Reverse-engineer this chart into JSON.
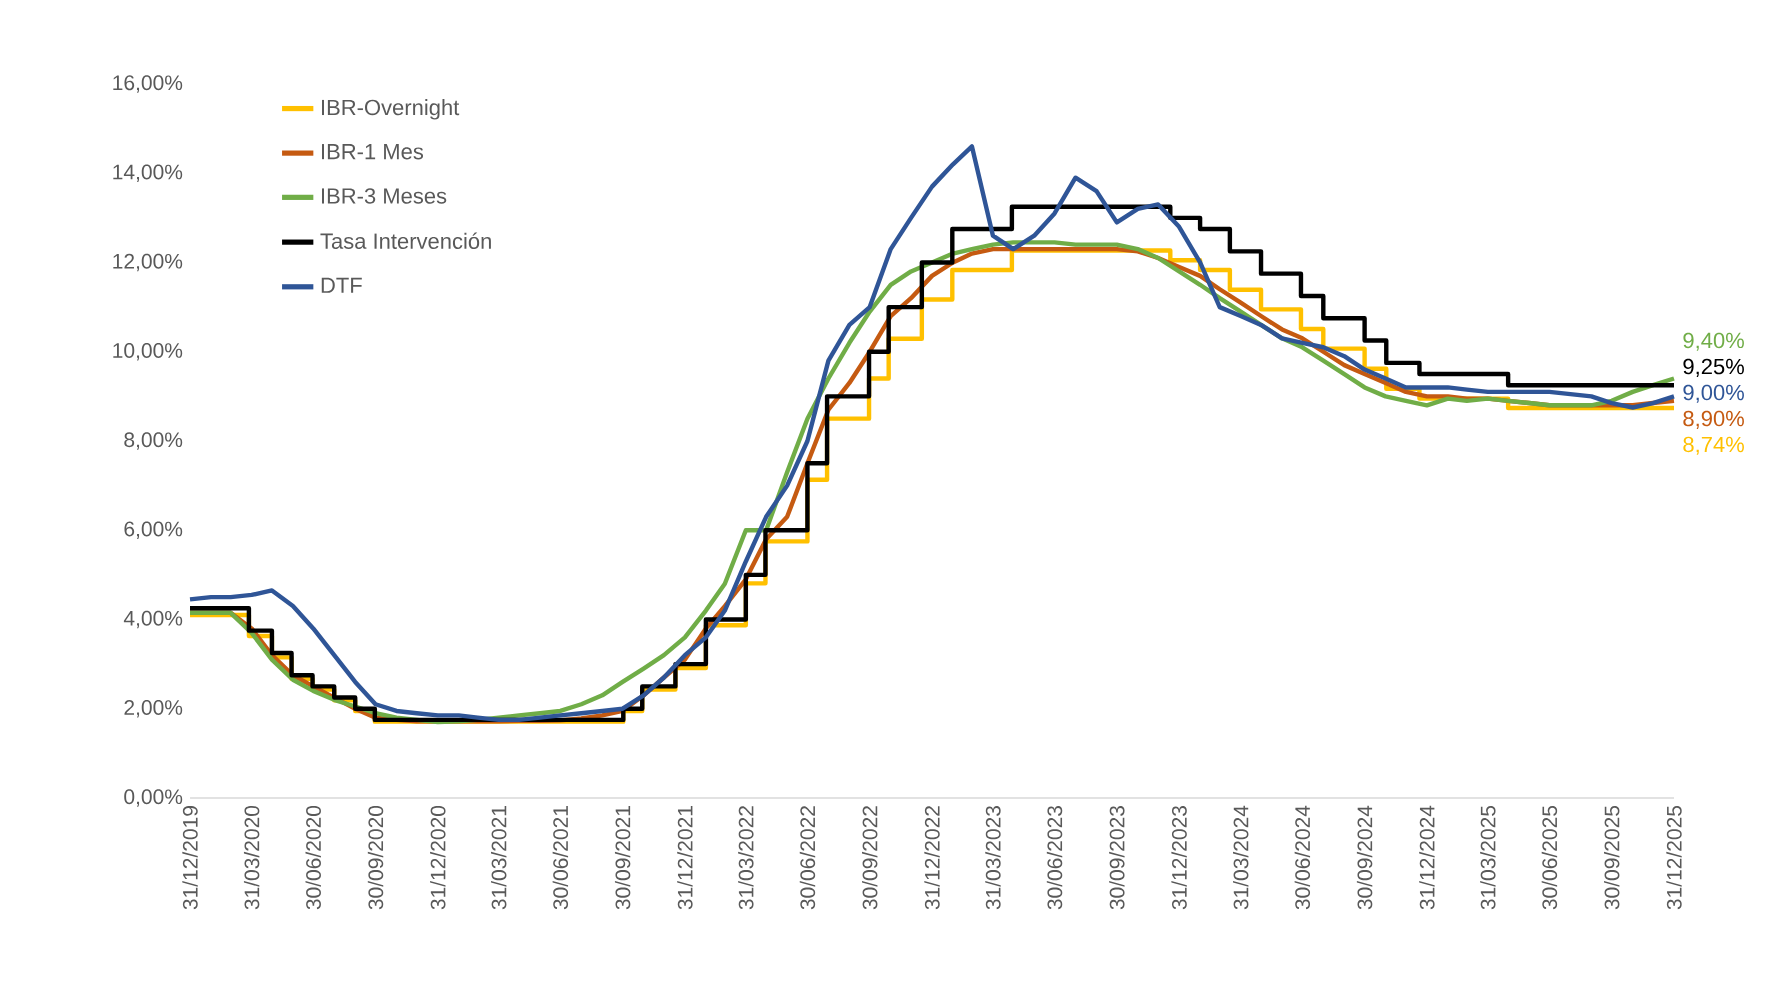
{
  "chart_data": {
    "type": "line",
    "x": [
      "2019-12-31",
      "2020-01-31",
      "2020-02-29",
      "2020-03-31",
      "2020-04-30",
      "2020-05-31",
      "2020-06-30",
      "2020-07-31",
      "2020-08-31",
      "2020-09-30",
      "2020-10-31",
      "2020-11-30",
      "2020-12-31",
      "2021-01-31",
      "2021-02-28",
      "2021-03-31",
      "2021-04-30",
      "2021-05-31",
      "2021-06-30",
      "2021-07-31",
      "2021-08-31",
      "2021-09-30",
      "2021-10-31",
      "2021-11-30",
      "2021-12-31",
      "2022-01-31",
      "2022-02-28",
      "2022-03-31",
      "2022-04-30",
      "2022-05-31",
      "2022-06-30",
      "2022-07-31",
      "2022-08-31",
      "2022-09-30",
      "2022-10-31",
      "2022-11-30",
      "2022-12-31",
      "2023-01-31",
      "2023-02-28",
      "2023-03-31",
      "2023-04-30",
      "2023-05-31",
      "2023-06-30",
      "2023-07-31",
      "2023-08-31",
      "2023-09-30",
      "2023-10-31",
      "2023-11-30",
      "2023-12-31",
      "2024-01-31",
      "2024-02-29",
      "2024-03-31",
      "2024-04-30",
      "2024-05-31",
      "2024-06-30",
      "2024-07-31",
      "2024-08-31",
      "2024-09-30",
      "2024-10-31",
      "2024-11-30",
      "2024-12-31",
      "2025-01-31",
      "2025-02-28",
      "2025-03-31",
      "2025-04-30",
      "2025-05-31",
      "2025-06-30",
      "2025-07-31",
      "2025-08-31",
      "2025-09-30",
      "2025-10-31",
      "2025-11-30",
      "2025-12-31"
    ],
    "series": [
      {
        "name": "IBR-Overnight",
        "type": "step",
        "color": "#ffc000",
        "x": [
          "2019-12-31",
          "2020-03-27",
          "2020-04-30",
          "2020-05-29",
          "2020-06-29",
          "2020-07-31",
          "2020-08-31",
          "2020-09-29",
          "2021-10-01",
          "2021-10-29",
          "2021-12-17",
          "2022-01-31",
          "2022-03-31",
          "2022-04-29",
          "2022-06-30",
          "2022-07-29",
          "2022-09-29",
          "2022-10-28",
          "2022-12-16",
          "2023-01-30",
          "2023-04-28",
          "2023-12-18",
          "2024-01-31",
          "2024-03-15",
          "2024-04-30",
          "2024-06-28",
          "2024-07-31",
          "2024-09-30",
          "2024-11-01",
          "2024-12-20",
          "2025-04-30",
          "2025-12-31"
        ],
        "values": [
          4.1,
          3.63,
          3.15,
          2.67,
          2.43,
          2.19,
          1.95,
          1.71,
          1.95,
          2.43,
          2.91,
          3.87,
          4.81,
          5.75,
          7.13,
          8.5,
          9.4,
          10.29,
          11.17,
          11.83,
          12.27,
          12.05,
          11.83,
          11.39,
          10.95,
          10.51,
          10.07,
          9.62,
          9.17,
          8.95,
          8.74,
          8.74
        ],
        "value_labels": [
          null,
          null,
          null,
          null,
          null,
          null,
          null,
          null,
          null,
          null,
          null,
          null,
          null,
          null,
          null,
          null,
          null,
          null,
          null,
          null,
          null,
          null,
          null,
          null,
          null,
          null,
          null,
          null,
          null,
          null,
          null,
          "8,74%"
        ]
      },
      {
        "name": "IBR-1 Mes",
        "color": "#c55a11",
        "values": [
          4.15,
          4.15,
          4.15,
          3.8,
          3.2,
          2.75,
          2.5,
          2.25,
          2.0,
          1.8,
          1.75,
          1.72,
          1.72,
          1.72,
          1.72,
          1.72,
          1.73,
          1.73,
          1.74,
          1.78,
          1.85,
          1.95,
          2.3,
          2.7,
          3.1,
          3.8,
          4.3,
          4.9,
          5.8,
          6.3,
          7.5,
          8.7,
          9.3,
          10.0,
          10.8,
          11.2,
          11.7,
          12.0,
          12.2,
          12.3,
          12.3,
          12.3,
          12.3,
          12.3,
          12.3,
          12.3,
          12.25,
          12.1,
          11.9,
          11.7,
          11.4,
          11.1,
          10.8,
          10.5,
          10.3,
          10.0,
          9.7,
          9.5,
          9.3,
          9.1,
          9.0,
          9.0,
          8.95,
          8.95,
          8.9,
          8.85,
          8.8,
          8.8,
          8.8,
          8.8,
          8.8,
          8.85,
          8.9
        ],
        "value_labels": [
          null,
          null,
          null,
          null,
          null,
          null,
          null,
          null,
          null,
          null,
          null,
          null,
          null,
          null,
          null,
          null,
          null,
          null,
          null,
          null,
          null,
          null,
          null,
          null,
          null,
          null,
          null,
          null,
          null,
          null,
          null,
          null,
          null,
          null,
          null,
          null,
          null,
          null,
          null,
          null,
          null,
          null,
          null,
          null,
          null,
          null,
          null,
          null,
          null,
          null,
          null,
          null,
          null,
          null,
          null,
          null,
          null,
          null,
          null,
          null,
          null,
          null,
          null,
          null,
          null,
          null,
          null,
          null,
          null,
          null,
          null,
          null,
          "8,90%"
        ]
      },
      {
        "name": "IBR-3 Meses",
        "color": "#70ad47",
        "values": [
          4.15,
          4.15,
          4.15,
          3.7,
          3.1,
          2.65,
          2.4,
          2.2,
          2.05,
          1.9,
          1.8,
          1.75,
          1.7,
          1.72,
          1.75,
          1.8,
          1.85,
          1.9,
          1.95,
          2.1,
          2.3,
          2.6,
          2.9,
          3.2,
          3.6,
          4.2,
          4.8,
          6.0,
          6.0,
          7.3,
          8.5,
          9.4,
          10.2,
          10.9,
          11.5,
          11.8,
          12.0,
          12.2,
          12.3,
          12.4,
          12.45,
          12.45,
          12.45,
          12.4,
          12.4,
          12.4,
          12.3,
          12.1,
          11.8,
          11.5,
          11.2,
          10.9,
          10.6,
          10.3,
          10.1,
          9.8,
          9.5,
          9.2,
          9.0,
          8.9,
          8.8,
          8.95,
          8.9,
          8.95,
          8.9,
          8.85,
          8.8,
          8.8,
          8.8,
          8.9,
          9.1,
          9.25,
          9.4
        ],
        "value_labels": [
          null,
          null,
          null,
          null,
          null,
          null,
          null,
          null,
          null,
          null,
          null,
          null,
          null,
          null,
          null,
          null,
          null,
          null,
          null,
          null,
          null,
          null,
          null,
          null,
          null,
          null,
          null,
          null,
          null,
          null,
          null,
          null,
          null,
          null,
          null,
          null,
          null,
          null,
          null,
          null,
          null,
          null,
          null,
          null,
          null,
          null,
          null,
          null,
          null,
          null,
          null,
          null,
          null,
          null,
          null,
          null,
          null,
          null,
          null,
          null,
          null,
          null,
          null,
          null,
          null,
          null,
          null,
          null,
          null,
          null,
          null,
          null,
          "9,40%"
        ]
      },
      {
        "name": "Tasa Intervención",
        "type": "step",
        "color": "#000000",
        "x": [
          "2019-12-31",
          "2020-03-27",
          "2020-04-30",
          "2020-05-29",
          "2020-06-29",
          "2020-07-31",
          "2020-08-31",
          "2020-09-29",
          "2021-10-01",
          "2021-10-29",
          "2021-12-17",
          "2022-01-31",
          "2022-03-31",
          "2022-04-29",
          "2022-06-30",
          "2022-07-29",
          "2022-09-29",
          "2022-10-28",
          "2022-12-16",
          "2023-01-30",
          "2023-04-28",
          "2023-12-18",
          "2024-01-31",
          "2024-03-15",
          "2024-04-30",
          "2024-06-28",
          "2024-07-31",
          "2024-09-30",
          "2024-11-01",
          "2024-12-20",
          "2025-04-30",
          "2025-12-31"
        ],
        "values": [
          4.25,
          3.75,
          3.25,
          2.75,
          2.5,
          2.25,
          2.0,
          1.75,
          2.0,
          2.5,
          3.0,
          4.0,
          5.0,
          6.0,
          7.5,
          9.0,
          10.0,
          11.0,
          12.0,
          12.75,
          13.25,
          13.0,
          12.75,
          12.25,
          11.75,
          11.25,
          10.75,
          10.25,
          9.75,
          9.5,
          9.25,
          9.25
        ],
        "value_labels": [
          null,
          null,
          null,
          null,
          null,
          null,
          null,
          null,
          null,
          null,
          null,
          null,
          null,
          null,
          null,
          null,
          null,
          null,
          null,
          null,
          null,
          null,
          null,
          null,
          null,
          null,
          null,
          null,
          null,
          null,
          null,
          "9,25%"
        ]
      },
      {
        "name": "DTF",
        "color": "#2f5597",
        "values": [
          4.45,
          4.5,
          4.5,
          4.55,
          4.65,
          4.3,
          3.8,
          3.2,
          2.6,
          2.1,
          1.95,
          1.9,
          1.85,
          1.85,
          1.8,
          1.75,
          1.75,
          1.8,
          1.85,
          1.9,
          1.95,
          2.0,
          2.3,
          2.7,
          3.2,
          3.6,
          4.2,
          5.3,
          6.3,
          7.0,
          8.0,
          9.8,
          10.6,
          11.0,
          12.3,
          13.0,
          13.7,
          14.2,
          14.6,
          12.6,
          12.3,
          12.6,
          13.1,
          13.9,
          13.6,
          12.9,
          13.2,
          13.3,
          12.8,
          12.0,
          11.0,
          10.8,
          10.6,
          10.3,
          10.2,
          10.1,
          9.9,
          9.6,
          9.4,
          9.2,
          9.2,
          9.2,
          9.15,
          9.1,
          9.1,
          9.1,
          9.1,
          9.05,
          9.0,
          8.85,
          8.75,
          8.85,
          9.0
        ],
        "value_labels": [
          null,
          null,
          null,
          null,
          null,
          null,
          null,
          null,
          null,
          null,
          null,
          null,
          null,
          null,
          null,
          null,
          null,
          null,
          null,
          null,
          null,
          null,
          null,
          null,
          null,
          null,
          null,
          null,
          null,
          null,
          null,
          null,
          null,
          null,
          null,
          null,
          null,
          null,
          null,
          null,
          null,
          null,
          null,
          null,
          null,
          null,
          null,
          null,
          null,
          null,
          null,
          null,
          null,
          null,
          null,
          null,
          null,
          null,
          null,
          null,
          null,
          null,
          null,
          null,
          null,
          null,
          null,
          null,
          null,
          null,
          null,
          null,
          "9,00%"
        ]
      }
    ],
    "xlim": [
      "2019-12-31",
      "2025-12-31"
    ],
    "xticks": [
      {
        "value": "2019-12-31",
        "label": "31/12/2019"
      },
      {
        "value": "2020-03-31",
        "label": "31/03/2020"
      },
      {
        "value": "2020-06-30",
        "label": "30/06/2020"
      },
      {
        "value": "2020-09-30",
        "label": "30/09/2020"
      },
      {
        "value": "2020-12-31",
        "label": "31/12/2020"
      },
      {
        "value": "2021-03-31",
        "label": "31/03/2021"
      },
      {
        "value": "2021-06-30",
        "label": "30/06/2021"
      },
      {
        "value": "2021-09-30",
        "label": "30/09/2021"
      },
      {
        "value": "2021-12-31",
        "label": "31/12/2021"
      },
      {
        "value": "2022-03-31",
        "label": "31/03/2022"
      },
      {
        "value": "2022-06-30",
        "label": "30/06/2022"
      },
      {
        "value": "2022-09-30",
        "label": "30/09/2022"
      },
      {
        "value": "2022-12-31",
        "label": "31/12/2022"
      },
      {
        "value": "2023-03-31",
        "label": "31/03/2023"
      },
      {
        "value": "2023-06-30",
        "label": "30/06/2023"
      },
      {
        "value": "2023-09-30",
        "label": "30/09/2023"
      },
      {
        "value": "2023-12-31",
        "label": "31/12/2023"
      },
      {
        "value": "2024-03-31",
        "label": "31/03/2024"
      },
      {
        "value": "2024-06-30",
        "label": "30/06/2024"
      },
      {
        "value": "2024-09-30",
        "label": "30/09/2024"
      },
      {
        "value": "2024-12-31",
        "label": "31/12/2024"
      },
      {
        "value": "2025-03-31",
        "label": "31/03/2025"
      },
      {
        "value": "2025-06-30",
        "label": "30/06/2025"
      },
      {
        "value": "2025-09-30",
        "label": "30/09/2025"
      },
      {
        "value": "2025-12-31",
        "label": "31/12/2025"
      }
    ],
    "ylim": [
      0,
      16
    ],
    "yticks": [
      {
        "value": 0,
        "label": "0,00%"
      },
      {
        "value": 2,
        "label": "2,00%"
      },
      {
        "value": 4,
        "label": "4,00%"
      },
      {
        "value": 6,
        "label": "6,00%"
      },
      {
        "value": 8,
        "label": "8,00%"
      },
      {
        "value": 10,
        "label": "10,00%"
      },
      {
        "value": 12,
        "label": "12,00%"
      },
      {
        "value": 14,
        "label": "14,00%"
      },
      {
        "value": 16,
        "label": "16,00%"
      }
    ],
    "legend": "top left"
  }
}
